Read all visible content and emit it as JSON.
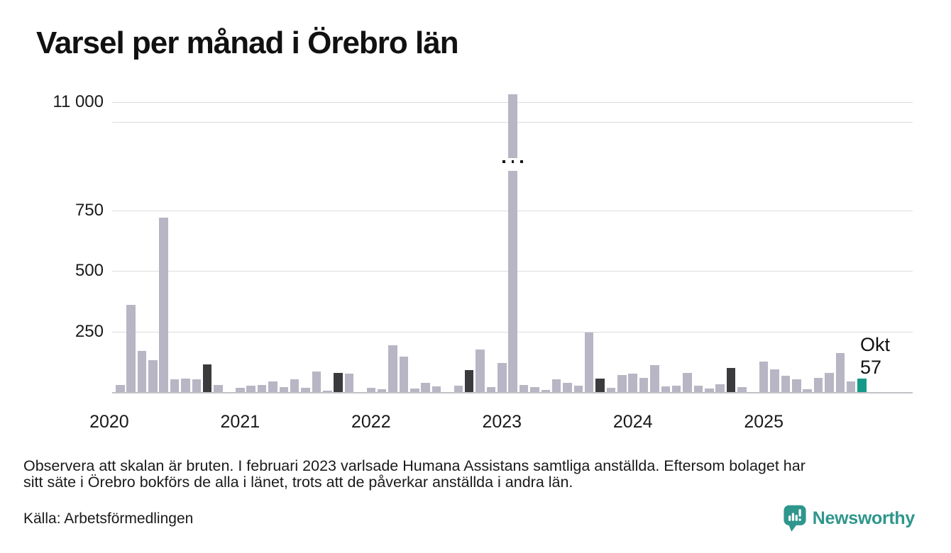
{
  "title": "Varsel per månad i Örebro län",
  "y_axis": {
    "ticks": [
      {
        "label": "11 000",
        "value": 11000
      },
      {
        "label": "750",
        "value": 750
      },
      {
        "label": "500",
        "value": 500
      },
      {
        "label": "250",
        "value": 250
      }
    ]
  },
  "x_axis": {
    "years": [
      "2020",
      "2021",
      "2022",
      "2023",
      "2024",
      "2025"
    ]
  },
  "annotation": {
    "month": "Okt",
    "value": "57"
  },
  "footnote_lines": [
    "Observera att skalan är bruten. I februari 2023 varlsade Humana Assistans samtliga anställda. Eftersom bolaget har",
    "sitt säte i Örebro bokförs de alla i länet, trots att de påverkar anställda i andra län."
  ],
  "source": "Källa: Arbetsförmedlingen",
  "logo": {
    "text": "Newsworthy"
  },
  "colors": {
    "bar_default": "#b8b5c4",
    "bar_highlight": "#3b3b3d",
    "bar_current": "#17998a",
    "grid": "#dcdcde",
    "axis": "#c2c2c6",
    "text": "#1a1a1a",
    "brand": "#2e968c",
    "break_dots": "#151515"
  },
  "chart_data": {
    "type": "bar",
    "title": "Varsel per månad i Örebro län",
    "xlabel": "",
    "ylabel": "",
    "ylim": [
      0,
      11000
    ],
    "grid": "horizontal",
    "legend": "none",
    "broken_scale": true,
    "break_between": [
      750,
      11000
    ],
    "categories": [
      "2020-02",
      "2020-03",
      "2020-04",
      "2020-05",
      "2020-06",
      "2020-07",
      "2020-08",
      "2020-09",
      "2020-10",
      "2020-11",
      "2020-12",
      "2021-01",
      "2021-02",
      "2021-03",
      "2021-04",
      "2021-05",
      "2021-06",
      "2021-07",
      "2021-08",
      "2021-09",
      "2021-10",
      "2021-11",
      "2021-12",
      "2022-01",
      "2022-02",
      "2022-03",
      "2022-04",
      "2022-05",
      "2022-06",
      "2022-07",
      "2022-08",
      "2022-09",
      "2022-10",
      "2022-11",
      "2022-12",
      "2023-01",
      "2023-02",
      "2023-03",
      "2023-04",
      "2023-05",
      "2023-06",
      "2023-07",
      "2023-08",
      "2023-09",
      "2023-10",
      "2023-11",
      "2023-12",
      "2024-01",
      "2024-02",
      "2024-03",
      "2024-04",
      "2024-05",
      "2024-06",
      "2024-07",
      "2024-08",
      "2024-09",
      "2024-10",
      "2024-11",
      "2024-12",
      "2025-01",
      "2025-02",
      "2025-03",
      "2025-04",
      "2025-05",
      "2025-06",
      "2025-07",
      "2025-08",
      "2025-09",
      "2025-10"
    ],
    "values": [
      28,
      360,
      170,
      133,
      718,
      53,
      55,
      52,
      114,
      28,
      0,
      17,
      25,
      28,
      43,
      21,
      54,
      19,
      85,
      6,
      78,
      75,
      0,
      19,
      11,
      192,
      147,
      15,
      38,
      23,
      0,
      27,
      90,
      176,
      21,
      120,
      11000,
      28,
      21,
      8,
      54,
      39,
      25,
      246,
      56,
      17,
      70,
      75,
      58,
      111,
      22,
      26,
      78,
      25,
      15,
      31,
      100,
      21,
      0,
      125,
      95,
      68,
      52,
      12,
      58,
      80,
      161,
      45,
      57
    ],
    "highlight_months": [
      "2020-10",
      "2021-10",
      "2022-10",
      "2023-10",
      "2024-10"
    ],
    "current_month": "2025-10",
    "current_label": {
      "month": "Okt",
      "value": 57
    }
  }
}
